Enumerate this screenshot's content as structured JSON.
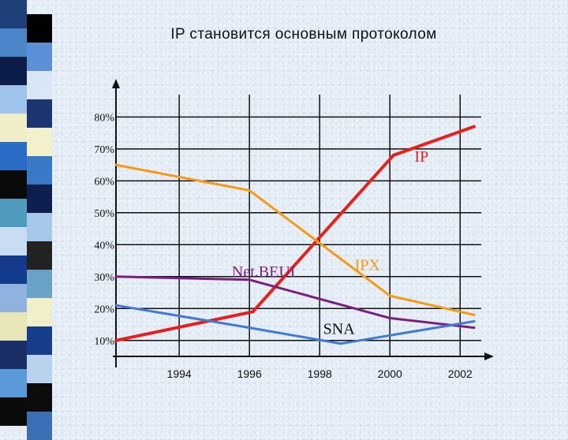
{
  "chart_data": {
    "type": "line",
    "title": "IP становится основным протоколом",
    "xlabel": "",
    "ylabel": "",
    "x_ticks": [
      "1994",
      "1996",
      "1998",
      "2000",
      "2002"
    ],
    "y_ticks": [
      "10%",
      "20%",
      "30%",
      "40%",
      "50%",
      "60%",
      "70%",
      "80%"
    ],
    "ylim": [
      5,
      87
    ],
    "xlim": [
      1992.2,
      2002.6
    ],
    "grid": true,
    "series": [
      {
        "name": "IP",
        "color": "#e8201c",
        "points": [
          [
            1992.2,
            10
          ],
          [
            1996.1,
            19
          ],
          [
            2000.1,
            68
          ],
          [
            2002.4,
            77
          ]
        ],
        "label_at": [
          2000.7,
          66
        ]
      },
      {
        "name": "IPX",
        "color": "#f59a14",
        "points": [
          [
            1992.2,
            65
          ],
          [
            1996.0,
            57
          ],
          [
            2000.0,
            24
          ],
          [
            2002.4,
            18
          ]
        ],
        "label_at": [
          1999.0,
          32
        ]
      },
      {
        "name": "Net.BEUI",
        "color": "#7a1f7e",
        "points": [
          [
            1992.2,
            30
          ],
          [
            1996.0,
            29
          ],
          [
            2000.0,
            17
          ],
          [
            2002.4,
            14
          ]
        ],
        "label_at": [
          1995.5,
          30
        ]
      },
      {
        "name": "SNA",
        "color": "#3f7bd4",
        "points": [
          [
            1992.2,
            21
          ],
          [
            1996.0,
            14
          ],
          [
            1998.6,
            9
          ],
          [
            2002.4,
            16
          ]
        ],
        "label_at": [
          1998.1,
          12
        ]
      }
    ]
  }
}
